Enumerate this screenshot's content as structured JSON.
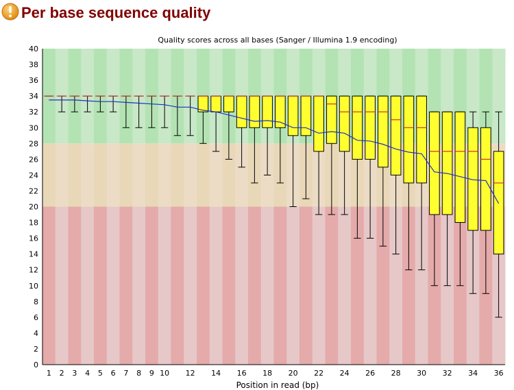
{
  "page": {
    "title": "Per base sequence quality",
    "status_icon": "warning-icon",
    "status_color": "#f0a030"
  },
  "chart_data": {
    "type": "box",
    "title": "Quality scores across all bases (Sanger / Illumina 1.9 encoding)",
    "xlabel": "Position in read (bp)",
    "ylabel": "",
    "ylim": [
      0,
      40
    ],
    "yticks": [
      0,
      2,
      4,
      6,
      8,
      10,
      12,
      14,
      16,
      18,
      20,
      22,
      24,
      26,
      28,
      30,
      32,
      34,
      36,
      38,
      40
    ],
    "xtick_labels": [
      "1",
      "2",
      "3",
      "4",
      "5",
      "6",
      "7",
      "8",
      "9",
      "10",
      "12",
      "14",
      "16",
      "18",
      "20",
      "22",
      "24",
      "26",
      "28",
      "30",
      "32",
      "34",
      "36"
    ],
    "background_zones": [
      {
        "from": 28,
        "to": 40,
        "color": "#b3e3b3",
        "alt_color": "#c8e8c8"
      },
      {
        "from": 20,
        "to": 28,
        "color": "#e8d8b8",
        "alt_color": "#ecdcc6"
      },
      {
        "from": 0,
        "to": 20,
        "color": "#e5aaaa",
        "alt_color": "#e6c8c8"
      }
    ],
    "colors": {
      "box": "#ffff30",
      "median": "#d03030",
      "mean": "#2030c0",
      "whisker": "#000000"
    },
    "series": [
      {
        "x": 1,
        "mean": 33.5,
        "lower": 34,
        "q1": 34,
        "median": 34,
        "q3": 34,
        "upper": 34
      },
      {
        "x": 2,
        "mean": 33.5,
        "lower": 32,
        "q1": 34,
        "median": 34,
        "q3": 34,
        "upper": 34
      },
      {
        "x": 3,
        "mean": 33.5,
        "lower": 32,
        "q1": 34,
        "median": 34,
        "q3": 34,
        "upper": 34
      },
      {
        "x": 4,
        "mean": 33.4,
        "lower": 32,
        "q1": 34,
        "median": 34,
        "q3": 34,
        "upper": 34
      },
      {
        "x": 5,
        "mean": 33.3,
        "lower": 32,
        "q1": 34,
        "median": 34,
        "q3": 34,
        "upper": 34
      },
      {
        "x": 6,
        "mean": 33.3,
        "lower": 32,
        "q1": 34,
        "median": 34,
        "q3": 34,
        "upper": 34
      },
      {
        "x": 7,
        "mean": 33.2,
        "lower": 30,
        "q1": 34,
        "median": 34,
        "q3": 34,
        "upper": 34
      },
      {
        "x": 8,
        "mean": 33.1,
        "lower": 30,
        "q1": 34,
        "median": 34,
        "q3": 34,
        "upper": 34
      },
      {
        "x": 9,
        "mean": 33.0,
        "lower": 30,
        "q1": 34,
        "median": 34,
        "q3": 34,
        "upper": 34
      },
      {
        "x": 10,
        "mean": 32.9,
        "lower": 30,
        "q1": 34,
        "median": 34,
        "q3": 34,
        "upper": 34
      },
      {
        "x": 11,
        "mean": 32.6,
        "lower": 29,
        "q1": 34,
        "median": 34,
        "q3": 34,
        "upper": 34
      },
      {
        "x": 12,
        "mean": 32.6,
        "lower": 29,
        "q1": 34,
        "median": 34,
        "q3": 34,
        "upper": 34
      },
      {
        "x": 13,
        "mean": 32.2,
        "lower": 28,
        "q1": 32,
        "median": 34,
        "q3": 34,
        "upper": 34
      },
      {
        "x": 14,
        "mean": 32.0,
        "lower": 27,
        "q1": 32,
        "median": 34,
        "q3": 34,
        "upper": 34
      },
      {
        "x": 15,
        "mean": 31.6,
        "lower": 26,
        "q1": 32,
        "median": 34,
        "q3": 34,
        "upper": 34
      },
      {
        "x": 16,
        "mean": 31.2,
        "lower": 25,
        "q1": 30,
        "median": 34,
        "q3": 34,
        "upper": 34
      },
      {
        "x": 17,
        "mean": 30.8,
        "lower": 23,
        "q1": 30,
        "median": 34,
        "q3": 34,
        "upper": 34
      },
      {
        "x": 18,
        "mean": 30.9,
        "lower": 24,
        "q1": 30,
        "median": 34,
        "q3": 34,
        "upper": 34
      },
      {
        "x": 19,
        "mean": 30.7,
        "lower": 23,
        "q1": 30,
        "median": 34,
        "q3": 34,
        "upper": 34
      },
      {
        "x": 20,
        "mean": 30.0,
        "lower": 20,
        "q1": 29,
        "median": 34,
        "q3": 34,
        "upper": 34
      },
      {
        "x": 21,
        "mean": 30.0,
        "lower": 21,
        "q1": 29,
        "median": 34,
        "q3": 34,
        "upper": 34
      },
      {
        "x": 22,
        "mean": 29.3,
        "lower": 19,
        "q1": 27,
        "median": 34,
        "q3": 34,
        "upper": 34
      },
      {
        "x": 23,
        "mean": 29.5,
        "lower": 19,
        "q1": 28,
        "median": 33,
        "q3": 34,
        "upper": 34
      },
      {
        "x": 24,
        "mean": 29.3,
        "lower": 19,
        "q1": 27,
        "median": 32,
        "q3": 34,
        "upper": 34
      },
      {
        "x": 25,
        "mean": 28.4,
        "lower": 16,
        "q1": 26,
        "median": 32,
        "q3": 34,
        "upper": 34
      },
      {
        "x": 26,
        "mean": 28.3,
        "lower": 16,
        "q1": 26,
        "median": 32,
        "q3": 34,
        "upper": 34
      },
      {
        "x": 27,
        "mean": 27.9,
        "lower": 15,
        "q1": 25,
        "median": 32,
        "q3": 34,
        "upper": 34
      },
      {
        "x": 28,
        "mean": 27.3,
        "lower": 14,
        "q1": 24,
        "median": 31,
        "q3": 34,
        "upper": 34
      },
      {
        "x": 29,
        "mean": 26.9,
        "lower": 12,
        "q1": 23,
        "median": 30,
        "q3": 34,
        "upper": 34
      },
      {
        "x": 30,
        "mean": 26.7,
        "lower": 12,
        "q1": 23,
        "median": 30,
        "q3": 34,
        "upper": 34
      },
      {
        "x": 31,
        "mean": 24.4,
        "lower": 10,
        "q1": 19,
        "median": 27,
        "q3": 32,
        "upper": 32
      },
      {
        "x": 32,
        "mean": 24.2,
        "lower": 10,
        "q1": 19,
        "median": 27,
        "q3": 32,
        "upper": 32
      },
      {
        "x": 33,
        "mean": 23.8,
        "lower": 10,
        "q1": 18,
        "median": 27,
        "q3": 32,
        "upper": 32
      },
      {
        "x": 34,
        "mean": 23.4,
        "lower": 9,
        "q1": 17,
        "median": 27,
        "q3": 30,
        "upper": 32
      },
      {
        "x": 35,
        "mean": 23.3,
        "lower": 9,
        "q1": 17,
        "median": 26,
        "q3": 30,
        "upper": 32
      },
      {
        "x": 36,
        "mean": 20.4,
        "lower": 6,
        "q1": 14,
        "median": 23,
        "q3": 27,
        "upper": 32
      }
    ]
  }
}
